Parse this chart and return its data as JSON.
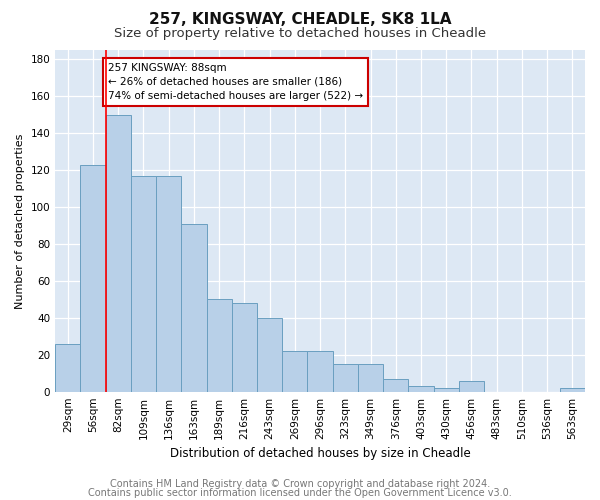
{
  "title": "257, KINGSWAY, CHEADLE, SK8 1LA",
  "subtitle": "Size of property relative to detached houses in Cheadle",
  "xlabel": "Distribution of detached houses by size in Cheadle",
  "ylabel": "Number of detached properties",
  "categories": [
    "29sqm",
    "56sqm",
    "82sqm",
    "109sqm",
    "136sqm",
    "163sqm",
    "189sqm",
    "216sqm",
    "243sqm",
    "269sqm",
    "296sqm",
    "323sqm",
    "349sqm",
    "376sqm",
    "403sqm",
    "430sqm",
    "456sqm",
    "483sqm",
    "510sqm",
    "536sqm",
    "563sqm"
  ],
  "values": [
    26,
    123,
    150,
    117,
    117,
    91,
    50,
    48,
    40,
    22,
    22,
    15,
    15,
    7,
    3,
    2,
    6,
    0,
    0,
    0,
    2
  ],
  "bar_color": "#b8d0e8",
  "bar_edge_color": "#6a9fc0",
  "bar_edge_width": 0.7,
  "red_line_x": 1.5,
  "annotation_text": "257 KINGSWAY: 88sqm\n← 26% of detached houses are smaller (186)\n74% of semi-detached houses are larger (522) →",
  "annotation_box_color": "#ffffff",
  "annotation_border_color": "#cc0000",
  "ylim": [
    0,
    185
  ],
  "yticks": [
    0,
    20,
    40,
    60,
    80,
    100,
    120,
    140,
    160,
    180
  ],
  "background_color": "#dde8f4",
  "fig_background_color": "#ffffff",
  "footer1": "Contains HM Land Registry data © Crown copyright and database right 2024.",
  "footer2": "Contains public sector information licensed under the Open Government Licence v3.0.",
  "title_fontsize": 11,
  "subtitle_fontsize": 9.5,
  "xlabel_fontsize": 8.5,
  "ylabel_fontsize": 8,
  "tick_fontsize": 7.5,
  "footer_fontsize": 7
}
